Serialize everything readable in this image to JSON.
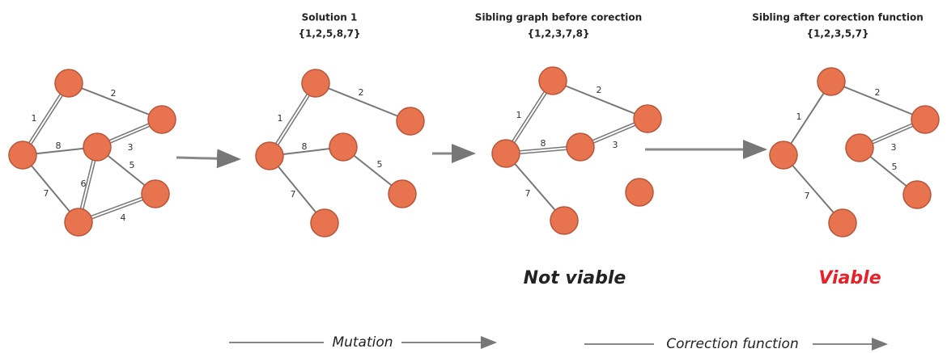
{
  "panels": [
    {
      "edges": [
        "1",
        "2",
        "8",
        "3",
        "5",
        "6",
        "7",
        "4"
      ]
    },
    {
      "title": "Solution 1",
      "subtitle": "{1,2,5,8,7}",
      "edges": [
        "1",
        "2",
        "8",
        "5",
        "7"
      ]
    },
    {
      "title": "Sibling graph before corection",
      "subtitle": "{1,2,3,7,8}",
      "edges": [
        "1",
        "2",
        "8",
        "3",
        "7"
      ],
      "status": "Not viable"
    },
    {
      "title": "Sibling after corection function",
      "subtitle": "{1,2,3,5,7}",
      "edges": [
        "1",
        "2",
        "3",
        "5",
        "7"
      ],
      "status": "Viable"
    }
  ],
  "bottom": {
    "mutation": "Mutation",
    "correction": "Correction function"
  }
}
